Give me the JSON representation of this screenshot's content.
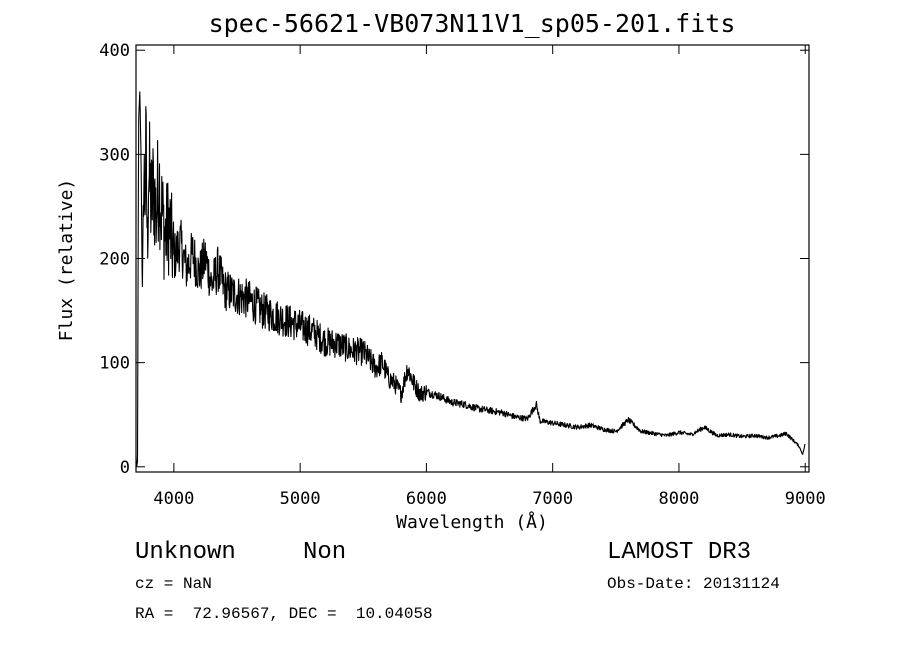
{
  "chart_data": {
    "type": "line",
    "title": "spec-56621-VB073N11V1_sp05-201.fits",
    "xlabel": "Wavelength (Å)",
    "ylabel": "Flux (relative)",
    "xlim": [
      3700,
      9030
    ],
    "ylim": [
      -5,
      405
    ],
    "xticks": [
      4000,
      5000,
      6000,
      7000,
      8000,
      9000
    ],
    "yticks": [
      0,
      100,
      200,
      300,
      400
    ],
    "grid": false,
    "series": [
      {
        "name": "flux",
        "x": [
          3700,
          3705,
          3712,
          3720,
          3730,
          3740,
          3750,
          3760,
          3770,
          3780,
          3790,
          3800,
          3820,
          3840,
          3860,
          3880,
          3900,
          3930,
          3960,
          4000,
          4050,
          4100,
          4150,
          4200,
          4250,
          4300,
          4350,
          4400,
          4500,
          4600,
          4700,
          4800,
          4900,
          5000,
          5100,
          5200,
          5300,
          5400,
          5500,
          5600,
          5650,
          5700,
          5750,
          5800,
          5850,
          5900,
          5950,
          6000,
          6100,
          6200,
          6300,
          6400,
          6500,
          6600,
          6700,
          6800,
          6870,
          6900,
          7000,
          7100,
          7200,
          7300,
          7400,
          7500,
          7600,
          7700,
          7800,
          7900,
          8000,
          8100,
          8200,
          8300,
          8400,
          8500,
          8600,
          8700,
          8800,
          8850,
          8900,
          8950,
          8980,
          9000
        ],
        "y": [
          10,
          0,
          5,
          330,
          360,
          300,
          160,
          290,
          260,
          300,
          210,
          290,
          250,
          270,
          240,
          280,
          250,
          220,
          235,
          200,
          215,
          190,
          205,
          185,
          200,
          175,
          190,
          170,
          165,
          160,
          150,
          145,
          140,
          135,
          130,
          120,
          118,
          112,
          110,
          95,
          100,
          85,
          80,
          70,
          95,
          80,
          70,
          72,
          68,
          62,
          60,
          56,
          54,
          52,
          48,
          46,
          60,
          44,
          42,
          40,
          38,
          40,
          36,
          34,
          45,
          34,
          32,
          30,
          33,
          31,
          38,
          30,
          31,
          29,
          30,
          28,
          30,
          32,
          26,
          20,
          12,
          22
        ]
      }
    ]
  },
  "info": {
    "object_class": "Unknown",
    "object_subclass": "Non",
    "survey": "LAMOST DR3",
    "cz": "cz = NaN",
    "obs_date": "Obs-Date: 20131124",
    "coords": "RA =  72.96567, DEC =  10.04058"
  }
}
